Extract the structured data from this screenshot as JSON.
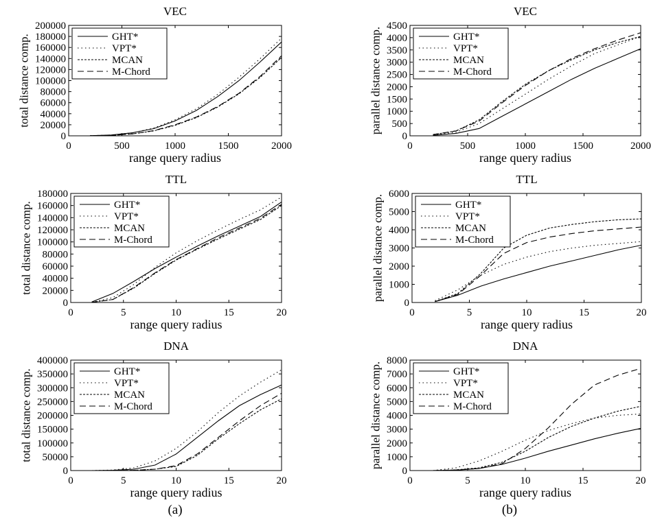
{
  "captions": [
    "(a)",
    "(b)"
  ],
  "chart_data": [
    {
      "type": "line",
      "title": "VEC",
      "xlabel": "range query radius",
      "ylabel": "total distance comp.",
      "xlim": [
        0,
        2000
      ],
      "ylim": [
        0,
        200000
      ],
      "xticks": [
        0,
        500,
        1000,
        1500,
        2000
      ],
      "yticks": [
        0,
        20000,
        40000,
        60000,
        80000,
        100000,
        120000,
        140000,
        160000,
        180000,
        200000
      ],
      "legend": "top-left",
      "series": [
        {
          "name": "GHT*",
          "x": [
            200,
            400,
            600,
            800,
            1000,
            1200,
            1400,
            1600,
            1800,
            2000
          ],
          "y": [
            200,
            1500,
            5500,
            13000,
            27000,
            46000,
            71000,
            100000,
            134000,
            170000
          ]
        },
        {
          "name": "VPT*",
          "x": [
            200,
            400,
            600,
            800,
            1000,
            1200,
            1400,
            1600,
            1800,
            2000
          ],
          "y": [
            200,
            1500,
            5500,
            14000,
            29000,
            49000,
            75000,
            106000,
            140000,
            177000
          ]
        },
        {
          "name": "MCAN",
          "x": [
            200,
            400,
            600,
            800,
            1000,
            1200,
            1400,
            1600,
            1800,
            2000
          ],
          "y": [
            100,
            800,
            3500,
            9000,
            19000,
            33000,
            52000,
            76000,
            106000,
            142000
          ]
        },
        {
          "name": "M-Chord",
          "x": [
            200,
            400,
            600,
            800,
            1000,
            1200,
            1400,
            1600,
            1800,
            2000
          ],
          "y": [
            100,
            800,
            3500,
            9500,
            20000,
            34000,
            53000,
            77000,
            108000,
            145000
          ]
        }
      ]
    },
    {
      "type": "line",
      "title": "VEC",
      "xlabel": "range query radius",
      "ylabel": "parallel distance comp.",
      "xlim": [
        0,
        2000
      ],
      "ylim": [
        0,
        4500
      ],
      "xticks": [
        0,
        500,
        1000,
        1500,
        2000
      ],
      "yticks": [
        0,
        500,
        1000,
        1500,
        2000,
        2500,
        3000,
        3500,
        4000,
        4500
      ],
      "legend": "top-left",
      "series": [
        {
          "name": "GHT*",
          "x": [
            200,
            400,
            600,
            800,
            1000,
            1200,
            1400,
            1600,
            1800,
            2000
          ],
          "y": [
            20,
            100,
            300,
            800,
            1300,
            1800,
            2300,
            2750,
            3150,
            3550
          ]
        },
        {
          "name": "VPT*",
          "x": [
            200,
            400,
            600,
            800,
            1000,
            1200,
            1400,
            1600,
            1800,
            2000
          ],
          "y": [
            30,
            150,
            500,
            1100,
            1700,
            2300,
            2850,
            3350,
            3700,
            4050
          ]
        },
        {
          "name": "MCAN",
          "x": [
            200,
            400,
            600,
            800,
            1000,
            1200,
            1400,
            1600,
            1800,
            2000
          ],
          "y": [
            50,
            200,
            650,
            1400,
            2100,
            2650,
            3100,
            3500,
            3800,
            4050
          ]
        },
        {
          "name": "M-Chord",
          "x": [
            200,
            400,
            600,
            800,
            1000,
            1200,
            1400,
            1600,
            1800,
            2000
          ],
          "y": [
            50,
            200,
            600,
            1350,
            2050,
            2650,
            3150,
            3550,
            3900,
            4200
          ]
        }
      ]
    },
    {
      "type": "line",
      "title": "TTL",
      "xlabel": "range query radius",
      "ylabel": "total distance comp.",
      "xlim": [
        0,
        20
      ],
      "ylim": [
        0,
        180000
      ],
      "xticks": [
        0,
        5,
        10,
        15,
        20
      ],
      "yticks": [
        0,
        20000,
        40000,
        60000,
        80000,
        100000,
        120000,
        140000,
        160000,
        180000
      ],
      "legend": "top-left",
      "series": [
        {
          "name": "GHT*",
          "x": [
            2,
            4,
            6,
            8,
            10,
            12,
            14,
            16,
            18,
            20
          ],
          "y": [
            1000,
            15000,
            35000,
            56000,
            75000,
            93000,
            110000,
            126000,
            142000,
            166000
          ]
        },
        {
          "name": "VPT*",
          "x": [
            2,
            4,
            6,
            8,
            10,
            12,
            14,
            16,
            18,
            20
          ],
          "y": [
            500,
            8000,
            30000,
            58000,
            82000,
            102000,
            120000,
            137000,
            153000,
            174000
          ]
        },
        {
          "name": "MCAN",
          "x": [
            2,
            4,
            6,
            8,
            10,
            12,
            14,
            16,
            18,
            20
          ],
          "y": [
            300,
            5000,
            24000,
            48000,
            70000,
            88000,
            105000,
            121000,
            137000,
            160000
          ]
        },
        {
          "name": "M-Chord",
          "x": [
            2,
            4,
            6,
            8,
            10,
            12,
            14,
            16,
            18,
            20
          ],
          "y": [
            300,
            5000,
            25000,
            49000,
            71000,
            89000,
            107000,
            123000,
            139000,
            162000
          ]
        }
      ]
    },
    {
      "type": "line",
      "title": "TTL",
      "xlabel": "range query radius",
      "ylabel": "parallel distance comp.",
      "xlim": [
        0,
        20
      ],
      "ylim": [
        0,
        6000
      ],
      "xticks": [
        0,
        5,
        10,
        15,
        20
      ],
      "yticks": [
        0,
        1000,
        2000,
        3000,
        4000,
        5000,
        6000
      ],
      "legend": "top-left",
      "series": [
        {
          "name": "GHT*",
          "x": [
            2,
            4,
            6,
            8,
            10,
            12,
            14,
            16,
            18,
            20
          ],
          "y": [
            50,
            400,
            900,
            1300,
            1650,
            2000,
            2300,
            2600,
            2900,
            3150
          ]
        },
        {
          "name": "VPT*",
          "x": [
            2,
            4,
            6,
            8,
            10,
            12,
            14,
            16,
            18,
            20
          ],
          "y": [
            100,
            700,
            1500,
            2100,
            2500,
            2800,
            3000,
            3150,
            3250,
            3350
          ]
        },
        {
          "name": "MCAN",
          "x": [
            2,
            4,
            6,
            8,
            10,
            12,
            14,
            16,
            18,
            20
          ],
          "y": [
            50,
            500,
            1600,
            3000,
            3700,
            4100,
            4300,
            4450,
            4550,
            4600
          ]
        },
        {
          "name": "M-Chord",
          "x": [
            2,
            4,
            6,
            8,
            10,
            12,
            14,
            16,
            18,
            20
          ],
          "y": [
            50,
            450,
            1500,
            2700,
            3300,
            3600,
            3800,
            3950,
            4050,
            4150
          ]
        }
      ]
    },
    {
      "type": "line",
      "title": "DNA",
      "xlabel": "range query radius",
      "ylabel": "total distance comp.",
      "xlim": [
        0,
        20
      ],
      "ylim": [
        0,
        400000
      ],
      "xticks": [
        0,
        5,
        10,
        15,
        20
      ],
      "yticks": [
        0,
        50000,
        100000,
        150000,
        200000,
        250000,
        300000,
        350000,
        400000
      ],
      "legend": "top-left",
      "series": [
        {
          "name": "GHT*",
          "x": [
            2,
            4,
            6,
            8,
            10,
            12,
            14,
            16,
            18,
            20
          ],
          "y": [
            0,
            1000,
            5000,
            20000,
            60000,
            120000,
            180000,
            235000,
            275000,
            310000
          ]
        },
        {
          "name": "VPT*",
          "x": [
            2,
            4,
            6,
            8,
            10,
            12,
            14,
            16,
            18,
            20
          ],
          "y": [
            0,
            2000,
            10000,
            35000,
            80000,
            140000,
            210000,
            270000,
            320000,
            365000
          ]
        },
        {
          "name": "MCAN",
          "x": [
            2,
            4,
            6,
            8,
            10,
            12,
            14,
            16,
            18,
            20
          ],
          "y": [
            0,
            0,
            1000,
            5000,
            15000,
            55000,
            115000,
            170000,
            220000,
            260000
          ]
        },
        {
          "name": "M-Chord",
          "x": [
            2,
            4,
            6,
            8,
            10,
            12,
            14,
            16,
            18,
            20
          ],
          "y": [
            0,
            0,
            1000,
            5000,
            18000,
            60000,
            120000,
            180000,
            235000,
            280000
          ]
        }
      ]
    },
    {
      "type": "line",
      "title": "DNA",
      "xlabel": "range query radius",
      "ylabel": "parallel distance comp.",
      "xlim": [
        0,
        20
      ],
      "ylim": [
        0,
        8000
      ],
      "xticks": [
        0,
        5,
        10,
        15,
        20
      ],
      "yticks": [
        0,
        1000,
        2000,
        3000,
        4000,
        5000,
        6000,
        7000,
        8000
      ],
      "legend": "top-left",
      "series": [
        {
          "name": "GHT*",
          "x": [
            2,
            4,
            6,
            8,
            10,
            12,
            14,
            16,
            18,
            20
          ],
          "y": [
            0,
            30,
            150,
            450,
            900,
            1400,
            1850,
            2300,
            2700,
            3050
          ]
        },
        {
          "name": "VPT*",
          "x": [
            2,
            4,
            6,
            8,
            10,
            12,
            14,
            16,
            18,
            20
          ],
          "y": [
            0,
            200,
            700,
            1400,
            2200,
            2900,
            3400,
            3800,
            4000,
            4100
          ]
        },
        {
          "name": "MCAN",
          "x": [
            2,
            4,
            6,
            8,
            10,
            12,
            14,
            16,
            18,
            20
          ],
          "y": [
            0,
            50,
            200,
            600,
            1400,
            2400,
            3200,
            3800,
            4300,
            4650
          ]
        },
        {
          "name": "M-Chord",
          "x": [
            2,
            4,
            6,
            8,
            10,
            12,
            14,
            16,
            18,
            20
          ],
          "y": [
            0,
            50,
            150,
            500,
            1600,
            3100,
            4800,
            6200,
            6900,
            7400
          ]
        }
      ]
    }
  ]
}
